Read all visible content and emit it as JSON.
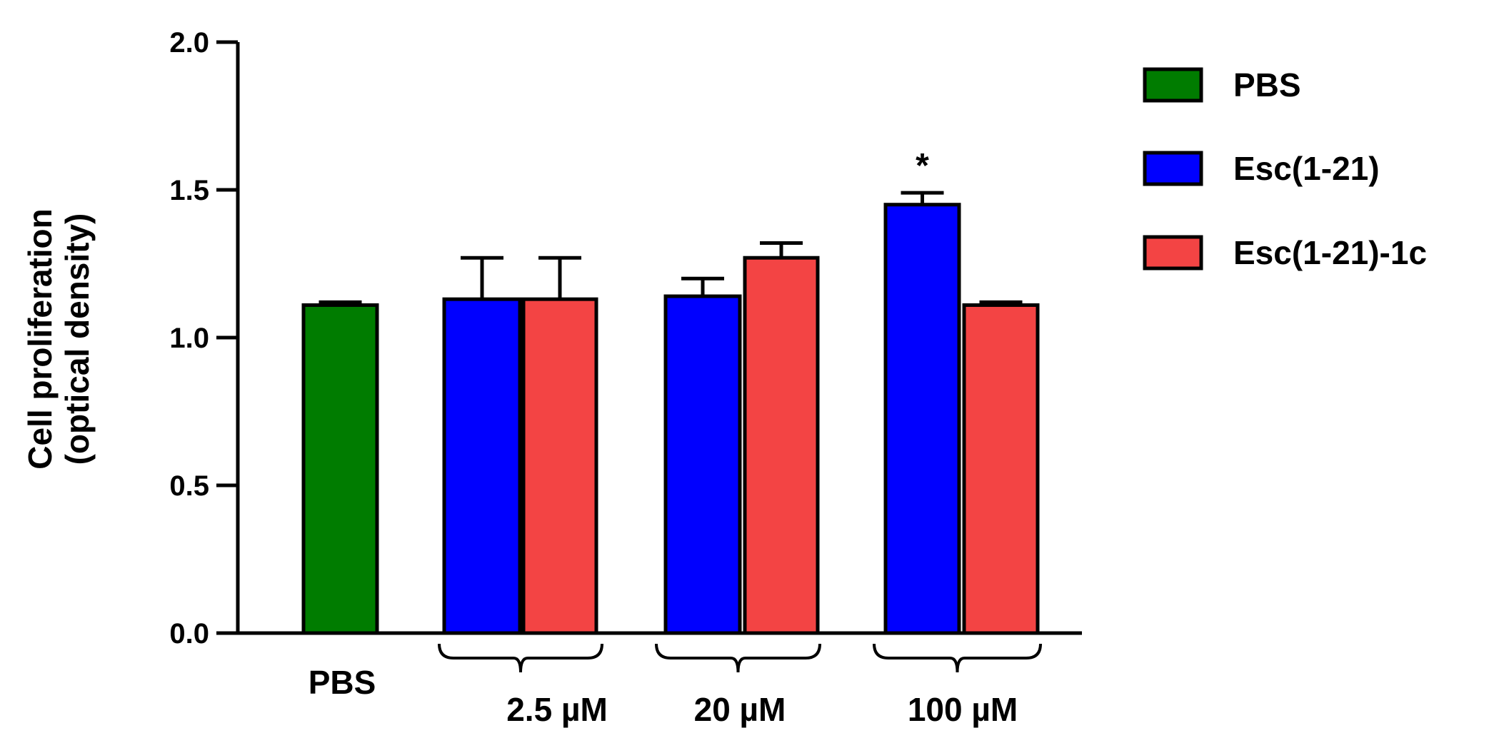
{
  "chart_data": {
    "type": "bar",
    "ylabel_line1": "Cell proliferation",
    "ylabel_line2": "(optical density)",
    "xlabel": "",
    "ylim": [
      0,
      2.0
    ],
    "yticks": [
      "0.0",
      "0.5",
      "1.0",
      "1.5",
      "2.0"
    ],
    "ytick_values": [
      0,
      0.5,
      1.0,
      1.5,
      2.0
    ],
    "groups": [
      {
        "label": "PBS",
        "bracket": false,
        "bars": [
          {
            "series": "PBS",
            "value": 1.11,
            "error": 0.01
          }
        ]
      },
      {
        "label": "2.5 µM",
        "bracket": true,
        "bars": [
          {
            "series": "Esc(1-21)",
            "value": 1.13,
            "error": 0.14
          },
          {
            "series": "Esc(1-21)-1c",
            "value": 1.13,
            "error": 0.14
          }
        ]
      },
      {
        "label": "20 µM",
        "bracket": true,
        "bars": [
          {
            "series": "Esc(1-21)",
            "value": 1.14,
            "error": 0.06
          },
          {
            "series": "Esc(1-21)-1c",
            "value": 1.27,
            "error": 0.05
          }
        ]
      },
      {
        "label": "100 µM",
        "bracket": true,
        "bars": [
          {
            "series": "Esc(1-21)",
            "value": 1.45,
            "error": 0.04,
            "annotation": "*"
          },
          {
            "series": "Esc(1-21)-1c",
            "value": 1.11,
            "error": 0.01
          }
        ]
      }
    ],
    "series": [
      {
        "name": "PBS",
        "color": "#007c00"
      },
      {
        "name": "Esc(1-21)",
        "color": "#0000ff"
      },
      {
        "name": "Esc(1-21)-1c",
        "color": "#f34444"
      }
    ],
    "legend_position": "top-right",
    "grid": false
  }
}
